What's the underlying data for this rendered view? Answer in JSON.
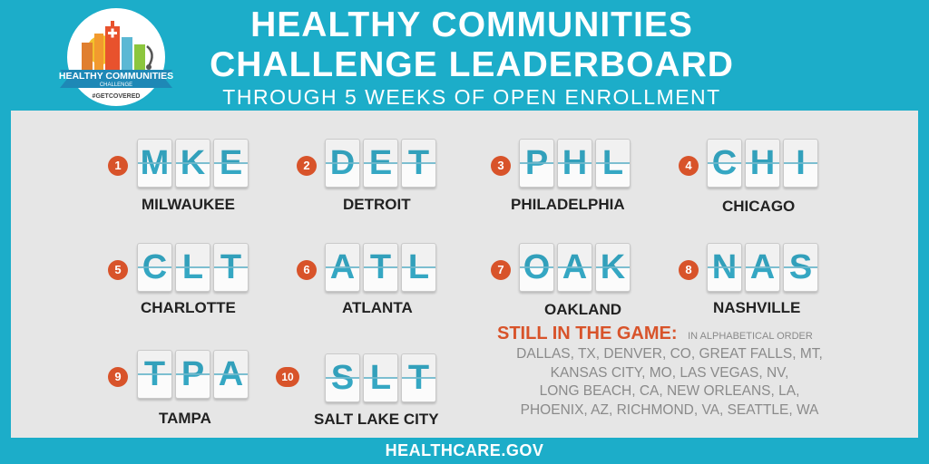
{
  "header": {
    "title_line1": "HEALTHY COMMUNITIES",
    "title_line2": "CHALLENGE LEADERBOARD",
    "subtitle": "THROUGH 5 WEEKS OF OPEN ENROLLMENT"
  },
  "logo": {
    "banner_text": "HEALTHY COMMUNITIES",
    "banner_sub": "CHALLENGE",
    "hashtag": "#GETCOVERED"
  },
  "leaders": [
    {
      "rank": "1",
      "letters": [
        "M",
        "K",
        "E"
      ],
      "city": "MILWAUKEE"
    },
    {
      "rank": "2",
      "letters": [
        "D",
        "E",
        "T"
      ],
      "city": "DETROIT"
    },
    {
      "rank": "3",
      "letters": [
        "P",
        "H",
        "L"
      ],
      "city": "PHILADELPHIA"
    },
    {
      "rank": "4",
      "letters": [
        "C",
        "H",
        "I"
      ],
      "city": "CHICAGO"
    },
    {
      "rank": "5",
      "letters": [
        "C",
        "L",
        "T"
      ],
      "city": "CHARLOTTE"
    },
    {
      "rank": "6",
      "letters": [
        "A",
        "T",
        "L"
      ],
      "city": "ATLANTA"
    },
    {
      "rank": "7",
      "letters": [
        "O",
        "A",
        "K"
      ],
      "city": "OAKLAND"
    },
    {
      "rank": "8",
      "letters": [
        "N",
        "A",
        "S"
      ],
      "city": "NASHVILLE"
    },
    {
      "rank": "9",
      "letters": [
        "T",
        "P",
        "A"
      ],
      "city": "TAMPA"
    },
    {
      "rank": "10",
      "letters": [
        "S",
        "L",
        "T"
      ],
      "city": "SALT LAKE CITY"
    }
  ],
  "still_in_game": {
    "heading": "STILL IN THE GAME:",
    "note": "IN ALPHABETICAL ORDER",
    "lines": [
      "DALLAS, TX, DENVER, CO, GREAT FALLS, MT,",
      "KANSAS CITY, MO, LAS VEGAS, NV,",
      "LONG BEACH, CA, NEW ORLEANS, LA,",
      "PHOENIX, AZ, RICHMOND, VA, SEATTLE, WA"
    ]
  },
  "footer": {
    "site": "HEALTHCARE.GOV"
  },
  "colors": {
    "background": "#1cadc9",
    "panel": "#e6e6e6",
    "accent": "#d8532a",
    "tile_text": "#35a7c3"
  }
}
